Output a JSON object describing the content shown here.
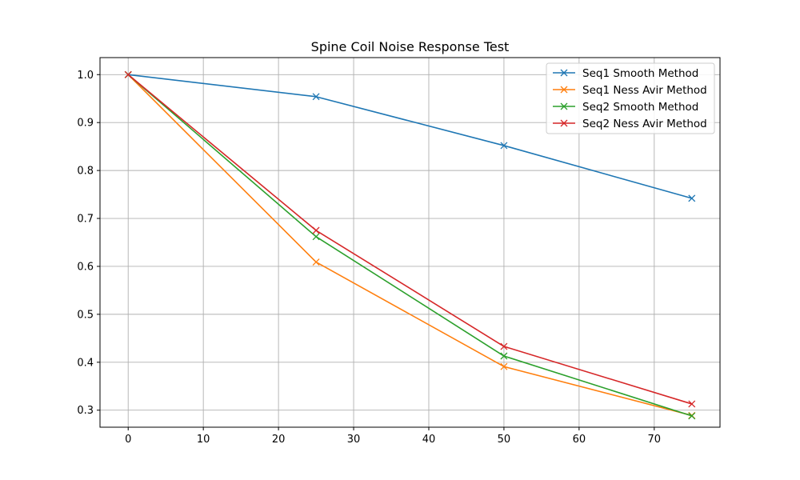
{
  "chart_data": {
    "type": "line",
    "title": "Spine Coil Noise Response Test",
    "xlabel": "",
    "ylabel": "",
    "x": [
      0,
      25,
      50,
      75
    ],
    "xlim": [
      -3.75,
      78.75
    ],
    "ylim": [
      0.2645,
      1.0355
    ],
    "xticks": [
      0,
      10,
      20,
      30,
      40,
      50,
      60,
      70
    ],
    "yticks": [
      0.3,
      0.4,
      0.5,
      0.6,
      0.7,
      0.8,
      0.9,
      1.0
    ],
    "xtick_labels": [
      "0",
      "10",
      "20",
      "30",
      "40",
      "50",
      "60",
      "70"
    ],
    "ytick_labels": [
      "0.3",
      "0.4",
      "0.5",
      "0.6",
      "0.7",
      "0.8",
      "0.9",
      "1.0"
    ],
    "grid": true,
    "legend_position": "top-right",
    "marker": "x",
    "series": [
      {
        "name": "Seq1 Smooth Method",
        "color": "#1f77b4",
        "values": [
          1.0,
          0.954,
          0.852,
          0.742
        ]
      },
      {
        "name": "Seq1 Ness Avir Method",
        "color": "#ff7f0e",
        "values": [
          1.0,
          0.609,
          0.391,
          0.289
        ]
      },
      {
        "name": "Seq2 Smooth Method",
        "color": "#2ca02c",
        "values": [
          1.0,
          0.662,
          0.413,
          0.288
        ]
      },
      {
        "name": "Seq2 Ness Avir Method",
        "color": "#d62728",
        "values": [
          1.0,
          0.675,
          0.433,
          0.313
        ]
      }
    ]
  }
}
